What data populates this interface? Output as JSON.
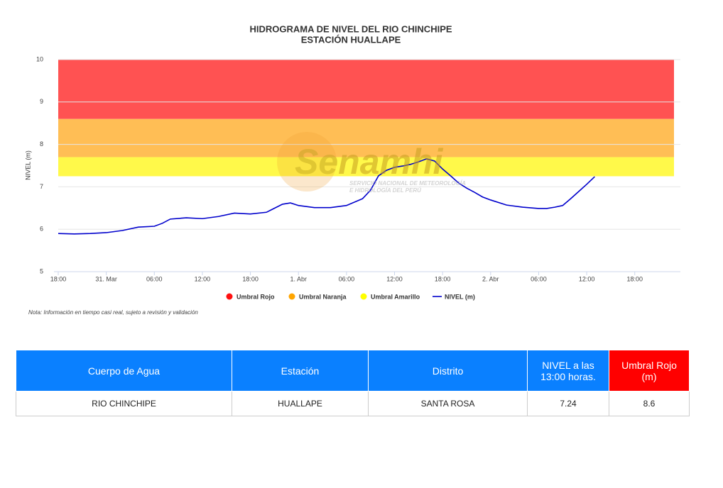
{
  "chart_data": {
    "type": "line",
    "title": "HIDROGRAMA DE NIVEL DEL RIO CHINCHIPE",
    "subtitle": "ESTACIÓN HUALLAPE",
    "y_label": "NIVEL (m)",
    "note": "Nota: Información en tiempo casi real, sujeto a revisión y validación",
    "watermark": {
      "title": "Senamhi",
      "line1": "SERVICIO NACIONAL DE METEOROLOGÍA",
      "line2": "E HIDROLOGÍA DEL PERÚ"
    },
    "xlim": [
      0,
      77.7
    ],
    "xticks": [
      {
        "value": 0,
        "label": "18:00"
      },
      {
        "value": 6,
        "label": "31. Mar"
      },
      {
        "value": 12,
        "label": "06:00"
      },
      {
        "value": 18,
        "label": "12:00"
      },
      {
        "value": 24,
        "label": "18:00"
      },
      {
        "value": 30,
        "label": "1. Abr"
      },
      {
        "value": 36,
        "label": "06:00"
      },
      {
        "value": 42,
        "label": "12:00"
      },
      {
        "value": 48,
        "label": "18:00"
      },
      {
        "value": 54,
        "label": "2. Abr"
      },
      {
        "value": 60,
        "label": "06:00"
      },
      {
        "value": 66,
        "label": "12:00"
      },
      {
        "value": 72,
        "label": "18:00"
      }
    ],
    "ylim": [
      5,
      10
    ],
    "yticks": [
      5,
      6,
      7,
      8,
      9,
      10
    ],
    "grid": true,
    "bands": [
      {
        "name": "Umbral Rojo",
        "color": "#ff5252",
        "legend_color": "#ff1010",
        "from": 8.6,
        "to": 10
      },
      {
        "name": "Umbral Naranja",
        "color": "#ffbe55",
        "legend_color": "#ffa500",
        "from": 7.7,
        "to": 8.6
      },
      {
        "name": "Umbral Amarillo",
        "color": "#fff94a",
        "legend_color": "#ffff00",
        "from": 7.25,
        "to": 7.7
      }
    ],
    "series": [
      {
        "name": "NIVEL (m)",
        "color": "#0000cc",
        "x": [
          0,
          2,
          4,
          6,
          8,
          10,
          12,
          13,
          14,
          16,
          18,
          20,
          22,
          24,
          26,
          28,
          29,
          30,
          32,
          34,
          36,
          38,
          39,
          40,
          41,
          42,
          43,
          44,
          45,
          46,
          47,
          48,
          49,
          50,
          51,
          52,
          53,
          54,
          56,
          58,
          60,
          61,
          62,
          63,
          64,
          65,
          66,
          67
        ],
        "values": [
          5.9,
          5.89,
          5.9,
          5.92,
          5.97,
          6.05,
          6.07,
          6.14,
          6.24,
          6.27,
          6.25,
          6.3,
          6.38,
          6.36,
          6.4,
          6.59,
          6.62,
          6.56,
          6.51,
          6.51,
          6.56,
          6.72,
          6.92,
          7.26,
          7.39,
          7.46,
          7.49,
          7.53,
          7.59,
          7.66,
          7.61,
          7.42,
          7.26,
          7.09,
          6.97,
          6.87,
          6.76,
          6.69,
          6.57,
          6.52,
          6.49,
          6.49,
          6.52,
          6.56,
          6.72,
          6.89,
          7.06,
          7.24
        ]
      }
    ]
  },
  "table": {
    "headers": [
      "Cuerpo de Agua",
      "Estación",
      "Distrito",
      "NIVEL a las 13:00 horas.",
      "Umbral Rojo (m)"
    ],
    "rows": [
      [
        "RIO CHINCHIPE",
        "HUALLAPE",
        "SANTA ROSA",
        "7.24",
        "8.6"
      ]
    ]
  }
}
